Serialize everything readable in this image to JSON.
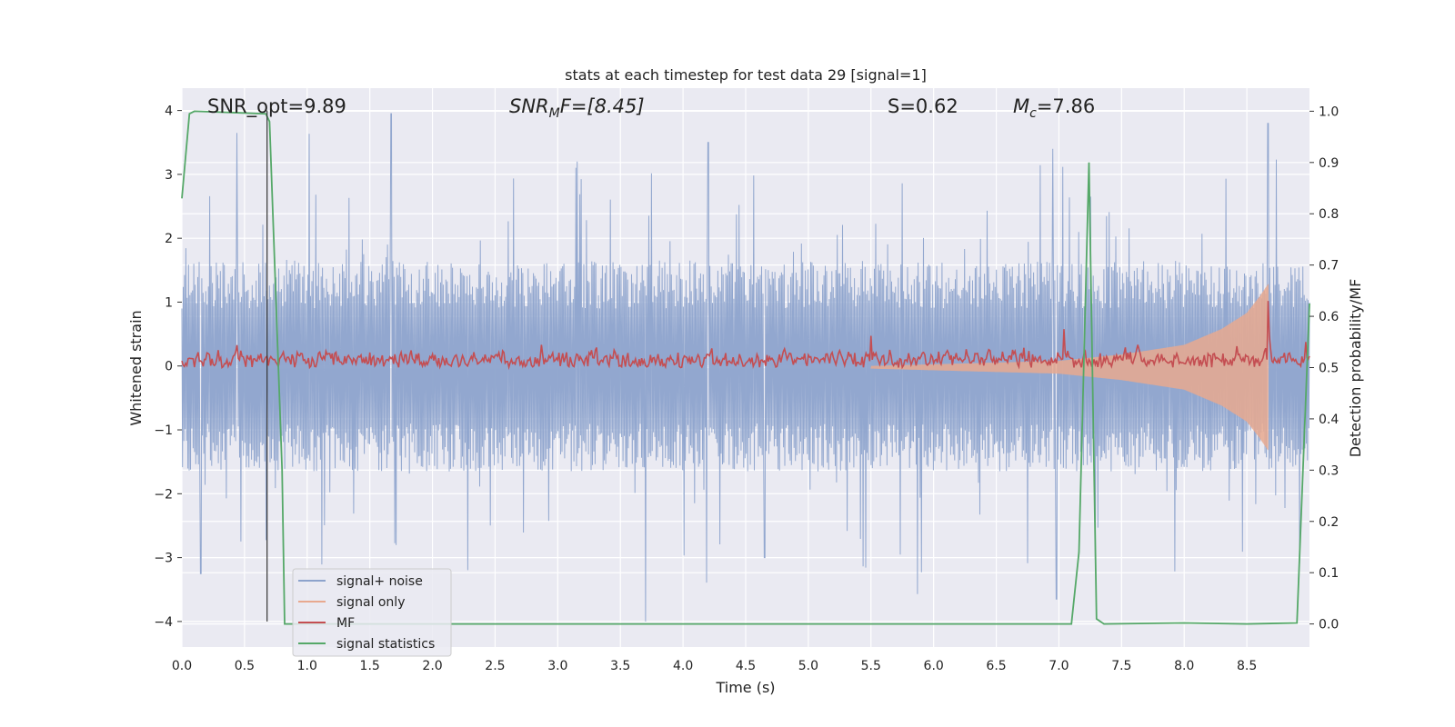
{
  "chart_data": {
    "type": "line",
    "title": "stats at each timestep for test data 29 [signal=1]",
    "xlabel": "Time (s)",
    "ylabel_left": "Whitened strain",
    "ylabel_right": "Detection probability/MF",
    "xlim": [
      0.0,
      9.0
    ],
    "ylim_left": [
      -4.4,
      4.35
    ],
    "ylim_right": [
      -0.045,
      1.045
    ],
    "x_ticks": [
      "0.0",
      "0.5",
      "1.0",
      "1.5",
      "2.0",
      "2.5",
      "3.0",
      "3.5",
      "4.0",
      "4.5",
      "5.0",
      "5.5",
      "6.0",
      "6.5",
      "7.0",
      "7.5",
      "8.0",
      "8.5"
    ],
    "y_left_ticks": [
      "−4",
      "−3",
      "−2",
      "−1",
      "0",
      "1",
      "2",
      "3",
      "4"
    ],
    "y_right_ticks": [
      "0.0",
      "0.1",
      "0.2",
      "0.3",
      "0.4",
      "0.5",
      "0.6",
      "0.7",
      "0.8",
      "0.9",
      "1.0"
    ],
    "grid": true,
    "legend_position": "lower-left",
    "annotations": {
      "snr_opt": "SNR_opt=9.89",
      "snr_mf_base": "SNR",
      "snr_mf_sub": "M",
      "snr_mf_rest": "F=[8.45]",
      "s_text": "S=0.62",
      "mc_base": "M",
      "mc_sub": "c",
      "mc_rest": "=7.86"
    },
    "marker_line_x": 0.68,
    "series": [
      {
        "name": "signal+ noise",
        "color": "#8da3cc",
        "axis": "left",
        "style": "noise band, amplitude roughly ±1.5 with spikes to about ±4",
        "sample_peaks": [
          {
            "x": 0.44,
            "y": 3.65
          },
          {
            "x": 1.67,
            "y": 3.95
          },
          {
            "x": 4.2,
            "y": 3.5
          },
          {
            "x": 6.95,
            "y": 3.4
          },
          {
            "x": 8.67,
            "y": 3.8
          },
          {
            "x": 3.7,
            "y": -4.0
          },
          {
            "x": 6.98,
            "y": -3.65
          },
          {
            "x": 4.65,
            "y": -3.0
          },
          {
            "x": 0.15,
            "y": -3.25
          }
        ]
      },
      {
        "name": "signal only",
        "color": "#e8a98f",
        "axis": "left",
        "style": "chirp growing from near zero around 5.5 s to peak near 8.67 s",
        "envelope": [
          {
            "x": 5.5,
            "y": 0.02
          },
          {
            "x": 7.0,
            "y": 0.1
          },
          {
            "x": 7.5,
            "y": 0.2
          },
          {
            "x": 8.0,
            "y": 0.35
          },
          {
            "x": 8.3,
            "y": 0.6
          },
          {
            "x": 8.5,
            "y": 0.85
          },
          {
            "x": 8.6,
            "y": 1.1
          },
          {
            "x": 8.67,
            "y": 1.3
          }
        ]
      },
      {
        "name": "MF",
        "color": "#c44e52",
        "axis": "right",
        "style": "noisy trace around 0.51 to 0.53",
        "baseline": 0.515,
        "sample_peaks": [
          {
            "x": 5.5,
            "y": 0.562
          },
          {
            "x": 7.04,
            "y": 0.575
          },
          {
            "x": 8.67,
            "y": 0.63
          },
          {
            "x": 8.97,
            "y": 0.55
          }
        ]
      },
      {
        "name": "signal statistics",
        "color": "#55a868",
        "axis": "right",
        "x": [
          0.0,
          0.06,
          0.1,
          0.67,
          0.7,
          0.8,
          0.82,
          1.0,
          7.1,
          7.16,
          7.24,
          7.3,
          7.36,
          8.0,
          8.5,
          8.9,
          8.94,
          9.0
        ],
        "values": [
          0.83,
          0.995,
          1.0,
          0.995,
          0.98,
          0.3,
          0.0,
          0.0,
          0.0,
          0.14,
          0.9,
          0.01,
          0.0,
          0.002,
          0.0,
          0.002,
          0.25,
          0.625
        ]
      }
    ]
  }
}
